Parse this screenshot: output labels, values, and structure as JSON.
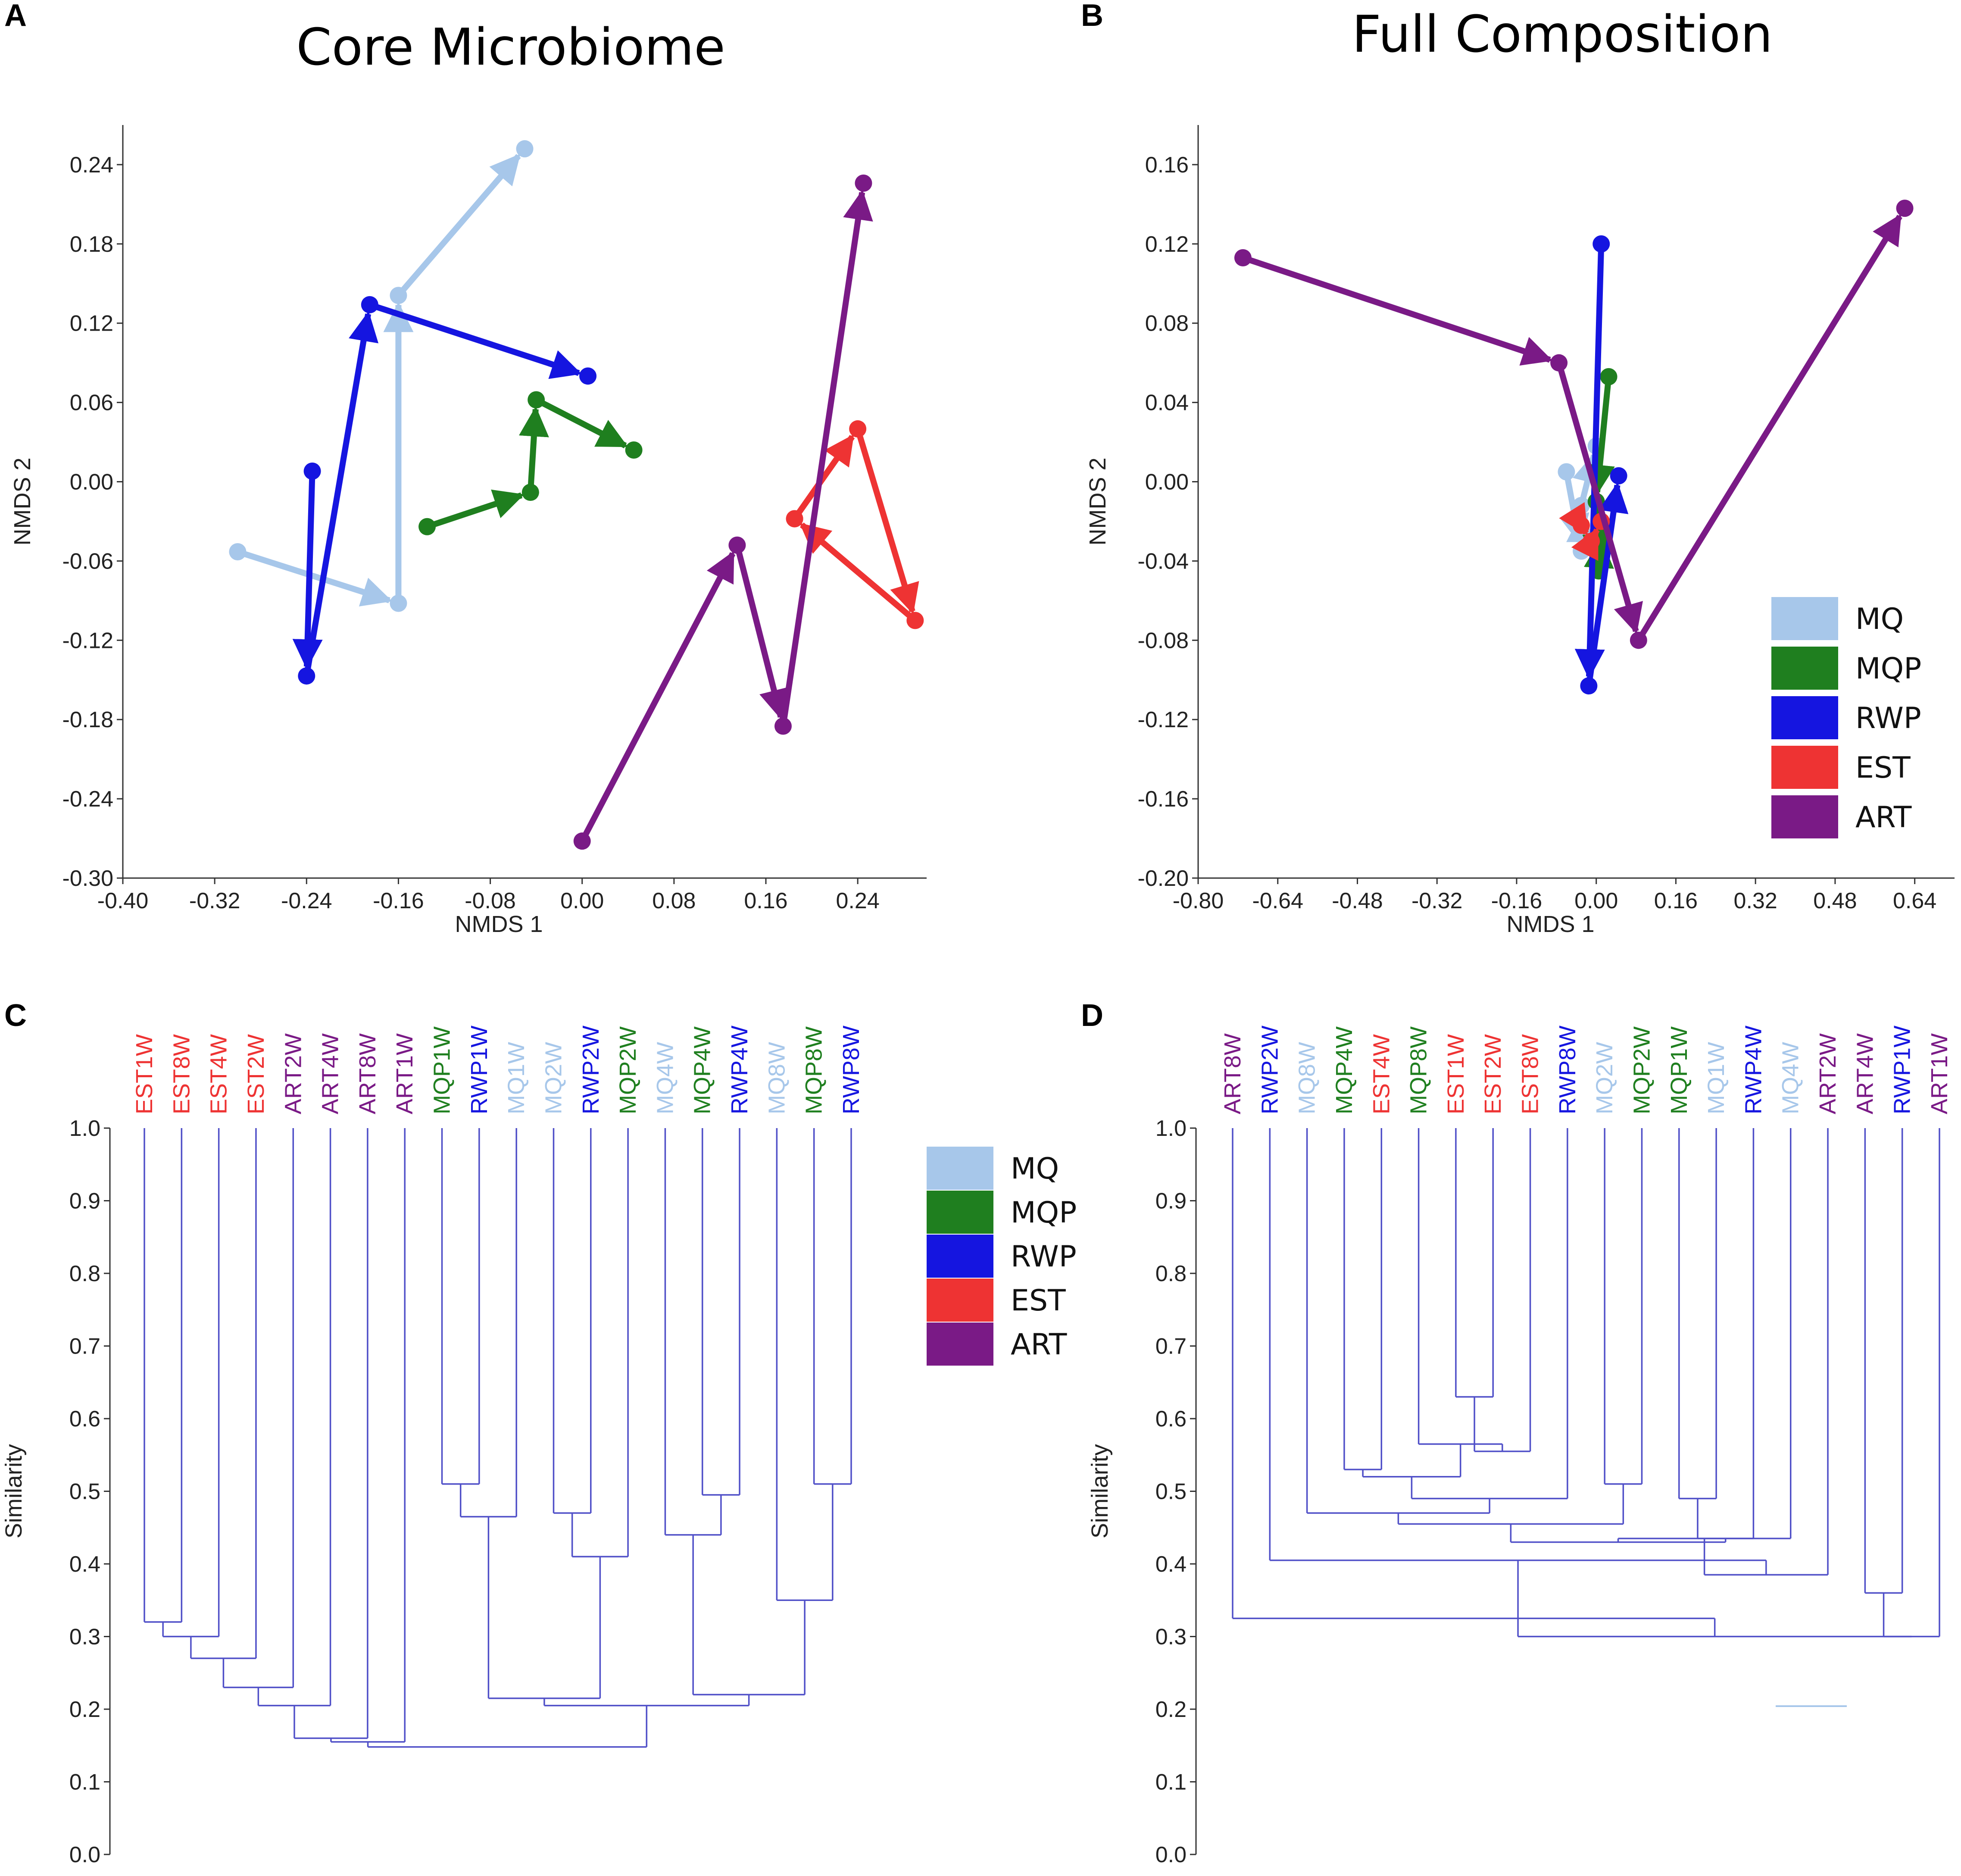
{
  "colors": {
    "MQ": "#a7c7ea",
    "MQP": "#1f7f1f",
    "RWP": "#1515e0",
    "EST": "#ee3333",
    "ART": "#7a1a86",
    "dendro": "#5050c8"
  },
  "legend": [
    {
      "label": "MQ",
      "color": "#a7c7ea"
    },
    {
      "label": "MQP",
      "color": "#1f7f1f"
    },
    {
      "label": "RWP",
      "color": "#1515e0"
    },
    {
      "label": "EST",
      "color": "#ee3333"
    },
    {
      "label": "ART",
      "color": "#7a1a86"
    }
  ],
  "chart_data": [
    {
      "panel": "A",
      "type": "scatter",
      "title": "Core Microbiome",
      "xlabel": "NMDS 1",
      "ylabel": "NMDS 2",
      "xlim": [
        -0.4,
        0.3
      ],
      "ylim": [
        -0.3,
        0.27
      ],
      "xticks": [
        -0.4,
        -0.32,
        -0.24,
        -0.16,
        -0.08,
        0.0,
        0.08,
        0.16,
        0.24
      ],
      "xtick_labels": [
        "-0.40",
        "-0.32",
        "-0.24",
        "-0.16",
        "-0.08",
        "0.00",
        "0.08",
        "0.16",
        "0.24"
      ],
      "yticks": [
        -0.3,
        -0.24,
        -0.18,
        -0.12,
        -0.06,
        0.0,
        0.06,
        0.12,
        0.18,
        0.24
      ],
      "ytick_labels": [
        "-0.30",
        "-0.24",
        "-0.18",
        "-0.12",
        "-0.06",
        "0.00",
        "0.06",
        "0.12",
        "0.18",
        "0.24"
      ],
      "series": [
        {
          "name": "MQ",
          "points": [
            [
              -0.3,
              -0.053
            ],
            [
              -0.16,
              -0.092
            ],
            [
              -0.16,
              0.141
            ],
            [
              -0.05,
              0.252
            ]
          ]
        },
        {
          "name": "RWP",
          "points": [
            [
              -0.235,
              0.008
            ],
            [
              -0.24,
              -0.147
            ],
            [
              -0.185,
              0.134
            ],
            [
              0.005,
              0.08
            ]
          ]
        },
        {
          "name": "MQP",
          "points": [
            [
              -0.135,
              -0.034
            ],
            [
              -0.045,
              -0.008
            ],
            [
              -0.04,
              0.062
            ],
            [
              0.045,
              0.024
            ]
          ]
        },
        {
          "name": "EST",
          "points": [
            [
              0.185,
              -0.028
            ],
            [
              0.24,
              0.04
            ],
            [
              0.29,
              -0.105
            ],
            [
              0.185,
              -0.028
            ]
          ]
        },
        {
          "name": "ART",
          "points": [
            [
              0.0,
              -0.272
            ],
            [
              0.135,
              -0.048
            ],
            [
              0.175,
              -0.185
            ],
            [
              0.245,
              0.226
            ]
          ]
        }
      ]
    },
    {
      "panel": "B",
      "type": "scatter",
      "title": "Full Composition",
      "xlabel": "NMDS 1",
      "ylabel": "NMDS 2",
      "xlim": [
        -0.8,
        0.72
      ],
      "ylim": [
        -0.2,
        0.18
      ],
      "xticks": [
        -0.8,
        -0.64,
        -0.48,
        -0.32,
        -0.16,
        0.0,
        0.16,
        0.32,
        0.48,
        0.64
      ],
      "xtick_labels": [
        "-0.80",
        "-0.64",
        "-0.48",
        "-0.32",
        "-0.16",
        "0.00",
        "0.16",
        "0.32",
        "0.48",
        "0.64"
      ],
      "yticks": [
        -0.2,
        -0.16,
        -0.12,
        -0.08,
        -0.04,
        0.0,
        0.04,
        0.08,
        0.12,
        0.16
      ],
      "ytick_labels": [
        "-0.20",
        "-0.16",
        "-0.12",
        "-0.08",
        "-0.04",
        "0.00",
        "0.04",
        "0.08",
        "0.12",
        "0.16"
      ],
      "series": [
        {
          "name": "MQ",
          "points": [
            [
              -0.06,
              0.005
            ],
            [
              -0.03,
              -0.035
            ],
            [
              -0.03,
              -0.012
            ],
            [
              0.0,
              0.018
            ]
          ]
        },
        {
          "name": "MQP",
          "points": [
            [
              0.025,
              0.053
            ],
            [
              0.0,
              -0.01
            ],
            [
              0.005,
              -0.045
            ],
            [
              0.01,
              -0.025
            ]
          ]
        },
        {
          "name": "RWP",
          "points": [
            [
              0.01,
              0.12
            ],
            [
              -0.015,
              -0.103
            ],
            [
              0.045,
              0.003
            ]
          ]
        },
        {
          "name": "EST",
          "points": [
            [
              -0.03,
              -0.022
            ],
            [
              -0.01,
              -0.03
            ],
            [
              0.01,
              -0.02
            ]
          ]
        },
        {
          "name": "ART",
          "points": [
            [
              -0.71,
              0.113
            ],
            [
              -0.075,
              0.06
            ],
            [
              0.085,
              -0.08
            ],
            [
              0.62,
              0.138
            ]
          ]
        }
      ]
    },
    {
      "panel": "C",
      "type": "dendrogram",
      "ylabel": "Similarity",
      "ylim": [
        0.0,
        1.0
      ],
      "yticks": [
        0.0,
        0.1,
        0.2,
        0.3,
        0.4,
        0.5,
        0.6,
        0.7,
        0.8,
        0.9,
        1.0
      ],
      "ytick_labels": [
        "0.0",
        "0.1",
        "0.2",
        "0.3",
        "0.4",
        "0.5",
        "0.6",
        "0.7",
        "0.8",
        "0.9",
        "1.0"
      ],
      "leaves": [
        {
          "label": "EST1W",
          "group": "EST"
        },
        {
          "label": "EST8W",
          "group": "EST"
        },
        {
          "label": "EST4W",
          "group": "EST"
        },
        {
          "label": "EST2W",
          "group": "EST"
        },
        {
          "label": "ART2W",
          "group": "ART"
        },
        {
          "label": "ART4W",
          "group": "ART"
        },
        {
          "label": "ART8W",
          "group": "ART"
        },
        {
          "label": "ART1W",
          "group": "ART"
        },
        {
          "label": "MQP1W",
          "group": "MQP"
        },
        {
          "label": "RWP1W",
          "group": "RWP"
        },
        {
          "label": "MQ1W",
          "group": "MQ"
        },
        {
          "label": "MQ2W",
          "group": "MQ"
        },
        {
          "label": "RWP2W",
          "group": "RWP"
        },
        {
          "label": "MQP2W",
          "group": "MQP"
        },
        {
          "label": "MQ4W",
          "group": "MQ"
        },
        {
          "label": "MQP4W",
          "group": "MQP"
        },
        {
          "label": "RWP4W",
          "group": "RWP"
        },
        {
          "label": "MQ8W",
          "group": "MQ"
        },
        {
          "label": "MQP8W",
          "group": "MQP"
        },
        {
          "label": "RWP8W",
          "group": "RWP"
        }
      ],
      "merges": [
        [
          0,
          1,
          0.32
        ],
        [
          20,
          2,
          0.3
        ],
        [
          21,
          3,
          0.27
        ],
        [
          22,
          4,
          0.23
        ],
        [
          23,
          5,
          0.205
        ],
        [
          8,
          9,
          0.51
        ],
        [
          25,
          10,
          0.465
        ],
        [
          11,
          12,
          0.47
        ],
        [
          27,
          13,
          0.41
        ],
        [
          15,
          16,
          0.495
        ],
        [
          14,
          29,
          0.44
        ],
        [
          18,
          19,
          0.51
        ],
        [
          17,
          31,
          0.35
        ],
        [
          26,
          28,
          0.215
        ],
        [
          30,
          32,
          0.22
        ],
        [
          33,
          34,
          0.205
        ],
        [
          24,
          6,
          0.16
        ],
        [
          36,
          7,
          0.155
        ],
        [
          37,
          35,
          0.148
        ]
      ]
    },
    {
      "panel": "D",
      "type": "dendrogram",
      "ylabel": "Similarity",
      "ylim": [
        0.0,
        1.0
      ],
      "yticks": [
        0.0,
        0.1,
        0.2,
        0.3,
        0.4,
        0.5,
        0.6,
        0.7,
        0.8,
        0.9,
        1.0
      ],
      "ytick_labels": [
        "0.0",
        "0.1",
        "0.2",
        "0.3",
        "0.4",
        "0.5",
        "0.6",
        "0.7",
        "0.8",
        "0.9",
        "1.0"
      ],
      "leaves": [
        {
          "label": "ART8W",
          "group": "ART"
        },
        {
          "label": "RWP2W",
          "group": "RWP"
        },
        {
          "label": "MQ8W",
          "group": "MQ"
        },
        {
          "label": "MQP4W",
          "group": "MQP"
        },
        {
          "label": "EST4W",
          "group": "EST"
        },
        {
          "label": "MQP8W",
          "group": "MQP"
        },
        {
          "label": "EST1W",
          "group": "EST"
        },
        {
          "label": "EST2W",
          "group": "EST"
        },
        {
          "label": "EST8W",
          "group": "EST"
        },
        {
          "label": "RWP8W",
          "group": "RWP"
        },
        {
          "label": "MQ2W",
          "group": "MQ"
        },
        {
          "label": "MQP2W",
          "group": "MQP"
        },
        {
          "label": "MQP1W",
          "group": "MQP"
        },
        {
          "label": "MQ1W",
          "group": "MQ"
        },
        {
          "label": "RWP4W",
          "group": "RWP"
        },
        {
          "label": "MQ4W",
          "group": "MQ"
        },
        {
          "label": "ART2W",
          "group": "ART"
        },
        {
          "label": "ART4W",
          "group": "ART"
        },
        {
          "label": "RWP1W",
          "group": "RWP"
        },
        {
          "label": "ART1W",
          "group": "ART"
        }
      ],
      "merges": [
        [
          6,
          7,
          0.63
        ],
        [
          20,
          8,
          0.555
        ],
        [
          5,
          21,
          0.565
        ],
        [
          3,
          4,
          0.53
        ],
        [
          23,
          22,
          0.52
        ],
        [
          24,
          9,
          0.49
        ],
        [
          2,
          25,
          0.47
        ],
        [
          10,
          11,
          0.51
        ],
        [
          12,
          13,
          0.49
        ],
        [
          28,
          14,
          0.435
        ],
        [
          26,
          27,
          0.455
        ],
        [
          30,
          29,
          0.43
        ],
        [
          31,
          15,
          0.435
        ],
        [
          32,
          16,
          0.385
        ],
        [
          1,
          33,
          0.405
        ],
        [
          17,
          18,
          0.36
        ],
        [
          35,
          19,
          0.3
        ],
        [
          34,
          36,
          0.3
        ],
        [
          0,
          37,
          0.325
        ]
      ]
    }
  ]
}
